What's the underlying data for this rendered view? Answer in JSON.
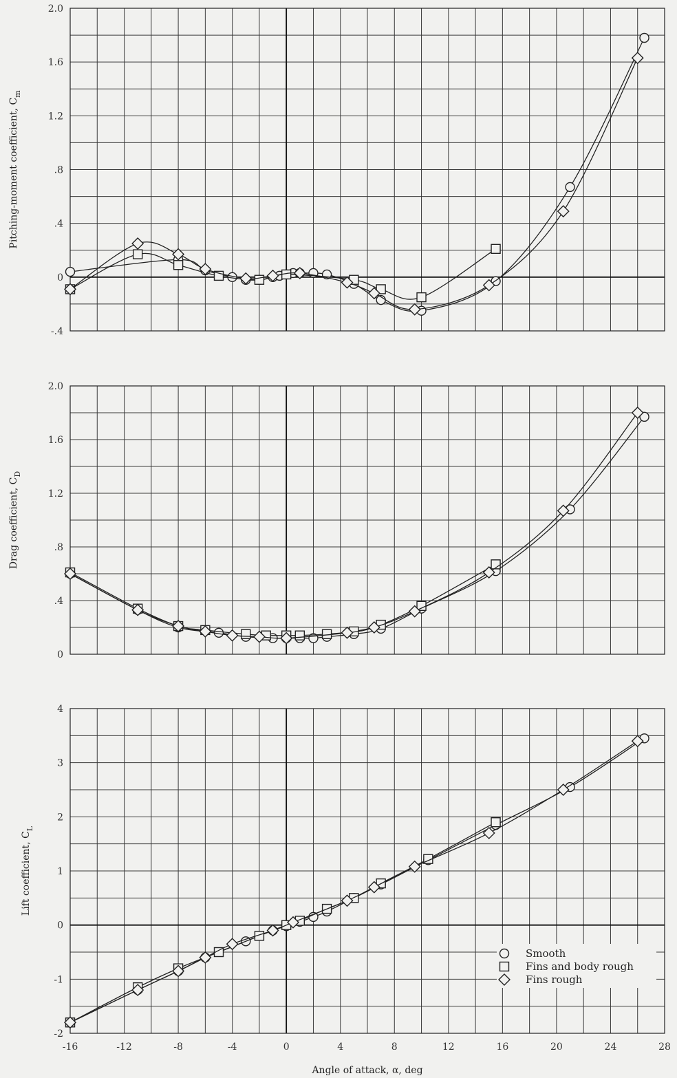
{
  "chart_data": [
    {
      "type": "line",
      "id": "cm",
      "ylabel": "Pitching-moment coefficient, C",
      "ylabel_sub": "m",
      "ylim": [
        -0.4,
        2.0
      ],
      "yticks": [
        -0.4,
        0,
        0.4,
        0.8,
        1.2,
        1.6,
        2.0
      ],
      "ytick_labels": [
        "-.4",
        "0",
        ".4",
        ".8",
        "1.2",
        "1.6",
        "2.0"
      ],
      "grid": true,
      "series": [
        {
          "name": "Smooth",
          "marker": "circle",
          "x": [
            -16,
            -8,
            -6,
            -4,
            -3,
            -2,
            -1,
            -0.5,
            0,
            0.5,
            1,
            2,
            3,
            5,
            7,
            10,
            15.5,
            21,
            26.5
          ],
          "y": [
            0.04,
            0.13,
            0.05,
            0.0,
            -0.02,
            -0.02,
            0.0,
            0.01,
            0.02,
            0.03,
            0.03,
            0.03,
            0.02,
            -0.05,
            -0.17,
            -0.25,
            -0.03,
            0.67,
            1.78
          ]
        },
        {
          "name": "Fins and body rough",
          "marker": "square",
          "x": [
            -16,
            -11,
            -8,
            -5,
            -2,
            0,
            5,
            7,
            10,
            15.5
          ],
          "y": [
            -0.09,
            0.17,
            0.09,
            0.01,
            -0.02,
            0.02,
            -0.02,
            -0.09,
            -0.15,
            0.21
          ]
        },
        {
          "name": "Fins rough",
          "marker": "diamond",
          "x": [
            -16,
            -11,
            -8,
            -6,
            -3,
            -1,
            1,
            4.5,
            6.5,
            9.5,
            15,
            20.5,
            26
          ],
          "y": [
            -0.09,
            0.25,
            0.17,
            0.06,
            -0.01,
            0.01,
            0.03,
            -0.04,
            -0.12,
            -0.24,
            -0.06,
            0.49,
            1.63
          ]
        }
      ]
    },
    {
      "type": "line",
      "id": "cd",
      "ylabel": "Drag coefficient, C",
      "ylabel_sub": "D",
      "ylim": [
        0,
        2.0
      ],
      "yticks": [
        0,
        0.4,
        0.8,
        1.2,
        1.6,
        2.0
      ],
      "ytick_labels": [
        "0",
        ".4",
        ".8",
        "1.2",
        "1.6",
        "2.0"
      ],
      "grid": true,
      "series": [
        {
          "name": "Smooth",
          "marker": "circle",
          "x": [
            -16,
            -11,
            -8,
            -5,
            -3,
            -1,
            0,
            1,
            2,
            3,
            5,
            7,
            10,
            15.5,
            21,
            26.5
          ],
          "y": [
            0.6,
            0.33,
            0.2,
            0.16,
            0.13,
            0.12,
            0.12,
            0.12,
            0.12,
            0.13,
            0.15,
            0.19,
            0.34,
            0.62,
            1.08,
            1.77
          ]
        },
        {
          "name": "Fins and body rough",
          "marker": "square",
          "x": [
            -16,
            -11,
            -8,
            -6,
            -3,
            -1.5,
            0,
            1,
            3,
            5,
            7,
            10,
            15.5
          ],
          "y": [
            0.61,
            0.34,
            0.21,
            0.18,
            0.15,
            0.14,
            0.14,
            0.14,
            0.15,
            0.17,
            0.22,
            0.36,
            0.67
          ]
        },
        {
          "name": "Fins rough",
          "marker": "diamond",
          "x": [
            -16,
            -11,
            -8,
            -6,
            -4,
            -2,
            0,
            4.5,
            6.5,
            9.5,
            15,
            20.5,
            26
          ],
          "y": [
            0.6,
            0.33,
            0.21,
            0.17,
            0.14,
            0.13,
            0.12,
            0.16,
            0.2,
            0.32,
            0.61,
            1.07,
            1.8
          ]
        }
      ]
    },
    {
      "type": "line",
      "id": "cl",
      "ylabel": "Lift coefficient, C",
      "ylabel_sub": "L",
      "xlabel": "Angle of attack, α, deg",
      "xlim": [
        -16,
        28
      ],
      "xticks": [
        -16,
        -12,
        -8,
        -4,
        0,
        4,
        8,
        12,
        16,
        20,
        24,
        28
      ],
      "xtick_labels": [
        "-16",
        "-12",
        "-8",
        "-4",
        "0",
        "4",
        "8",
        "12",
        "16",
        "20",
        "24",
        "28"
      ],
      "ylim": [
        -2,
        4
      ],
      "yticks": [
        -2,
        -1,
        0,
        1,
        2,
        3,
        4
      ],
      "ytick_labels": [
        "-2",
        "-1",
        "0",
        "1",
        "2",
        "3",
        "4"
      ],
      "grid": true,
      "legend": "bottom-right",
      "series": [
        {
          "name": "Smooth",
          "marker": "circle",
          "x": [
            -16,
            -11,
            -8,
            -6,
            -3,
            -1,
            0,
            1,
            2,
            3,
            5,
            7,
            10.5,
            15.5,
            21,
            26.5
          ],
          "y": [
            -1.8,
            -1.2,
            -0.85,
            -0.6,
            -0.3,
            -0.1,
            -0.02,
            0.06,
            0.15,
            0.25,
            0.5,
            0.75,
            1.2,
            1.85,
            2.55,
            3.45
          ]
        },
        {
          "name": "Fins and body rough",
          "marker": "square",
          "x": [
            -16,
            -11,
            -8,
            -5,
            -2,
            0,
            1,
            3,
            5,
            7,
            10.5,
            15.5
          ],
          "y": [
            -1.8,
            -1.15,
            -0.8,
            -0.5,
            -0.2,
            0.0,
            0.08,
            0.3,
            0.5,
            0.77,
            1.22,
            1.9
          ]
        },
        {
          "name": "Fins rough",
          "marker": "diamond",
          "x": [
            -16,
            -11,
            -8,
            -6,
            -4,
            -1,
            0.5,
            4.5,
            6.5,
            9.5,
            15,
            20.5,
            26
          ],
          "y": [
            -1.8,
            -1.2,
            -0.85,
            -0.6,
            -0.35,
            -0.1,
            0.05,
            0.45,
            0.7,
            1.08,
            1.7,
            2.5,
            3.4
          ]
        }
      ]
    }
  ]
}
